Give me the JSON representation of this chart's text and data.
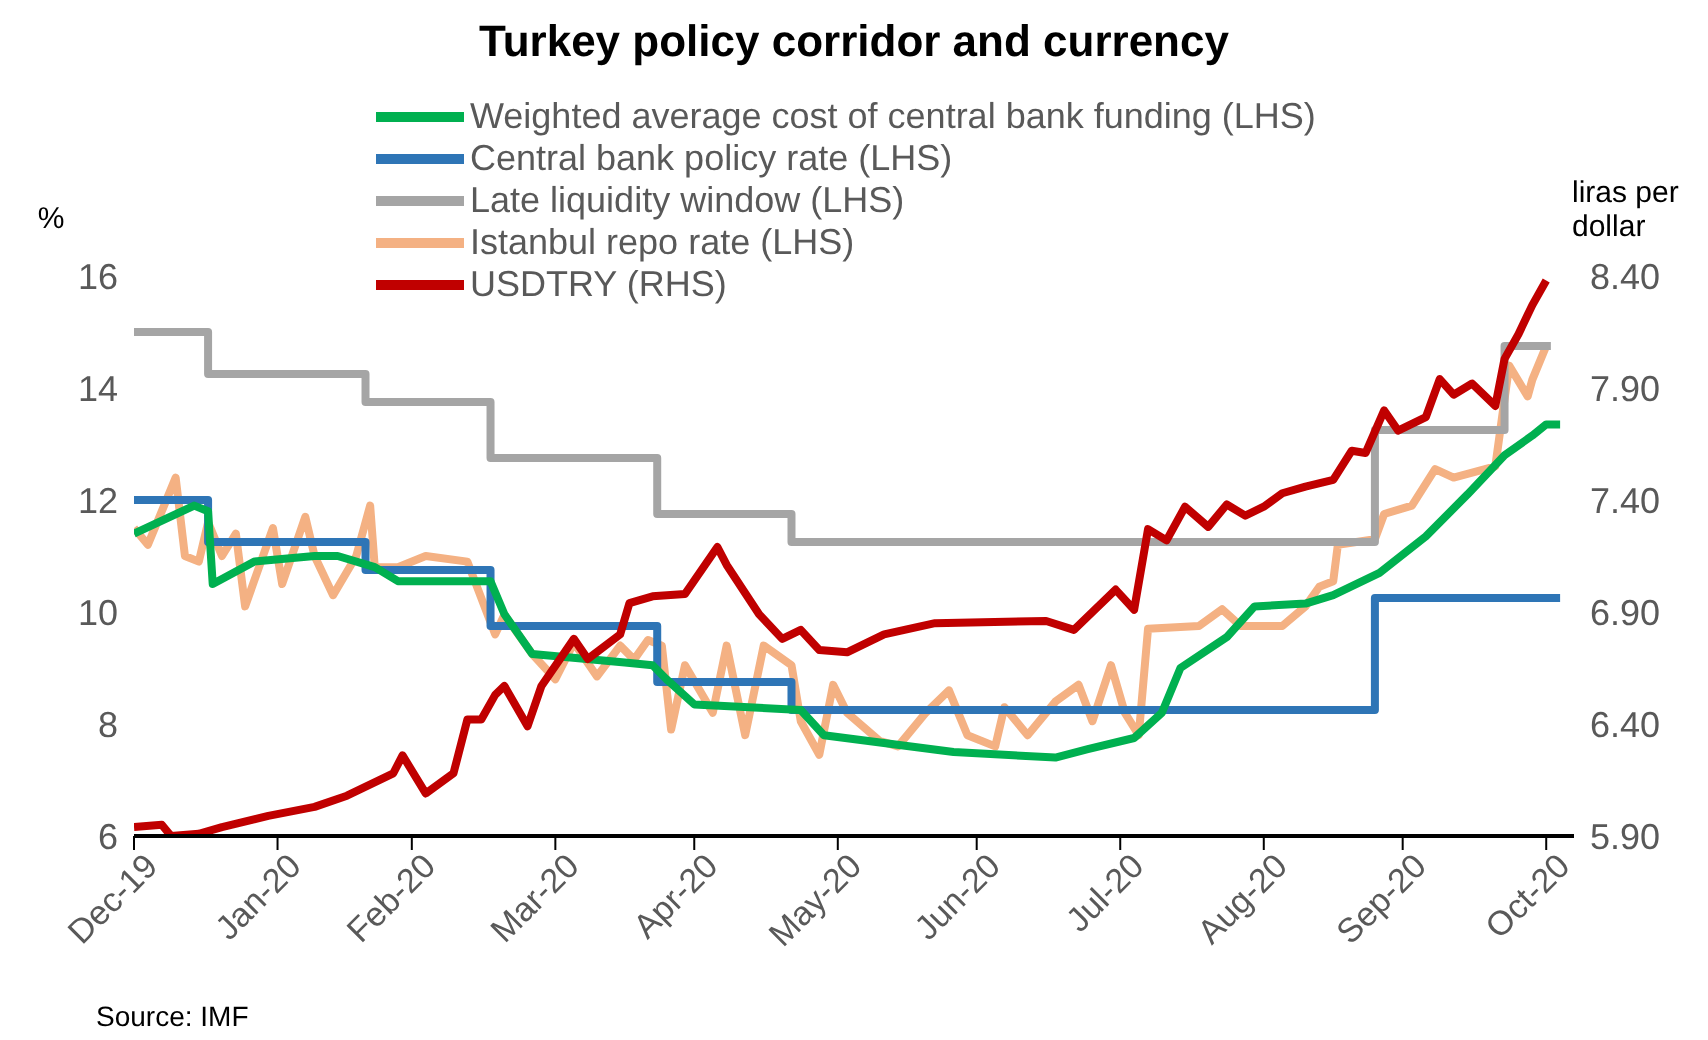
{
  "chart_data": {
    "type": "line",
    "title": "Turkey policy corridor and currency",
    "ylabel": "%",
    "y2label": "liras per dollar",
    "annotations": [
      "Source: IMF"
    ],
    "xlim": [
      "2019-12-31",
      "2020-11-06"
    ],
    "xticks": [
      {
        "value": "2019-12-31",
        "label": "Dec-19"
      },
      {
        "value": "2020-01-31",
        "label": "Jan-20"
      },
      {
        "value": "2020-02-29",
        "label": "Feb-20"
      },
      {
        "value": "2020-03-31",
        "label": "Mar-20"
      },
      {
        "value": "2020-04-30",
        "label": "Apr-20"
      },
      {
        "value": "2020-05-31",
        "label": "May-20"
      },
      {
        "value": "2020-06-30",
        "label": "Jun-20"
      },
      {
        "value": "2020-07-31",
        "label": "Jul-20"
      },
      {
        "value": "2020-08-31",
        "label": "Aug-20"
      },
      {
        "value": "2020-09-30",
        "label": "Sep-20"
      },
      {
        "value": "2020-10-31",
        "label": "Oct-20"
      }
    ],
    "ylim": [
      6,
      16
    ],
    "yticks": [
      6,
      8,
      10,
      12,
      14,
      16
    ],
    "y2lim": [
      5.9,
      8.4
    ],
    "y2ticks": [
      {
        "value": 5.9,
        "label": "5.90"
      },
      {
        "value": 6.4,
        "label": "6.40"
      },
      {
        "value": 6.9,
        "label": "6.90"
      },
      {
        "value": 7.4,
        "label": "7.40"
      },
      {
        "value": 7.9,
        "label": "7.90"
      },
      {
        "value": 8.4,
        "label": "8.40"
      }
    ],
    "grid": false,
    "legend": "top",
    "marker": "none",
    "series": [
      {
        "name": "Weighted average cost of central bank funding (LHS)",
        "color": "#00b050",
        "x": [
          "2019-12-31",
          "2020-01-13",
          "2020-01-16",
          "2020-01-17",
          "2020-01-26",
          "2020-02-08",
          "2020-02-13",
          "2020-02-21",
          "2020-02-26",
          "2020-03-17",
          "2020-03-20",
          "2020-03-26",
          "2020-04-15",
          "2020-04-21",
          "2020-04-24",
          "2020-04-30",
          "2020-05-23",
          "2020-05-28",
          "2020-06-25",
          "2020-07-17",
          "2020-07-24",
          "2020-08-03",
          "2020-08-09",
          "2020-08-13",
          "2020-08-23",
          "2020-08-29",
          "2020-09-09",
          "2020-09-15",
          "2020-09-25",
          "2020-10-05",
          "2020-10-14",
          "2020-10-22",
          "2020-10-28",
          "2020-10-31",
          "2020-11-03"
        ],
        "values": [
          11.4,
          11.9,
          11.8,
          10.5,
          10.9,
          11.0,
          11.0,
          10.8,
          10.55,
          10.55,
          9.96,
          9.25,
          9.1,
          9.05,
          8.8,
          8.35,
          8.25,
          7.8,
          7.5,
          7.4,
          7.55,
          7.75,
          8.2,
          9.0,
          9.55,
          10.1,
          10.15,
          10.3,
          10.7,
          11.35,
          12.1,
          12.8,
          13.15,
          13.35,
          13.35
        ]
      },
      {
        "name": "Central bank policy rate (LHS)",
        "color": "#2e75b6",
        "type": "step",
        "x": [
          "2019-12-31",
          "2020-01-16",
          "2020-02-19",
          "2020-03-17",
          "2020-04-22",
          "2020-05-21",
          "2020-09-24",
          "2020-11-03"
        ],
        "values": [
          12,
          11.25,
          10.75,
          9.75,
          8.75,
          8.25,
          10.25,
          10.25
        ]
      },
      {
        "name": "Late liquidity window (LHS)",
        "color": "#a5a5a5",
        "type": "step",
        "x": [
          "2019-12-31",
          "2020-01-16",
          "2020-02-19",
          "2020-03-17",
          "2020-04-22",
          "2020-05-21",
          "2020-09-24",
          "2020-10-22",
          "2020-11-01"
        ],
        "values": [
          15,
          14.25,
          13.75,
          12.75,
          11.75,
          11.25,
          13.25,
          14.75,
          14.75
        ]
      },
      {
        "name": "Istanbul repo rate (LHS)",
        "color": "#f4b183",
        "x": [
          "2019-12-31",
          "2020-01-03",
          "2020-01-09",
          "2020-01-11",
          "2020-01-14",
          "2020-01-16",
          "2020-01-19",
          "2020-01-22",
          "2020-01-24",
          "2020-01-30",
          "2020-02-01",
          "2020-02-06",
          "2020-02-08",
          "2020-02-12",
          "2020-02-17",
          "2020-02-20",
          "2020-02-21",
          "2020-02-26",
          "2020-03-03",
          "2020-03-12",
          "2020-03-18",
          "2020-03-20",
          "2020-03-26",
          "2020-03-31",
          "2020-04-04",
          "2020-04-09",
          "2020-04-14",
          "2020-04-17",
          "2020-04-20",
          "2020-04-23",
          "2020-04-25",
          "2020-04-28",
          "2020-05-04",
          "2020-05-07",
          "2020-05-11",
          "2020-05-15",
          "2020-05-21",
          "2020-05-23",
          "2020-05-27",
          "2020-05-30",
          "2020-06-02",
          "2020-06-09",
          "2020-06-13",
          "2020-06-19",
          "2020-06-24",
          "2020-06-28",
          "2020-07-04",
          "2020-07-06",
          "2020-07-11",
          "2020-07-17",
          "2020-07-22",
          "2020-07-25",
          "2020-07-29",
          "2020-08-01",
          "2020-08-04",
          "2020-08-06",
          "2020-08-17",
          "2020-08-22",
          "2020-08-26",
          "2020-09-04",
          "2020-09-09",
          "2020-09-12",
          "2020-09-15",
          "2020-09-16",
          "2020-09-24",
          "2020-09-26",
          "2020-10-02",
          "2020-10-07",
          "2020-10-11",
          "2020-10-20",
          "2020-10-23",
          "2020-10-27",
          "2020-10-28",
          "2020-10-31"
        ],
        "values": [
          11.5,
          11.2,
          12.4,
          11.0,
          10.9,
          11.6,
          11.0,
          11.4,
          10.1,
          11.5,
          10.5,
          11.7,
          11.0,
          10.3,
          11.0,
          11.9,
          10.8,
          10.8,
          11.0,
          10.9,
          9.6,
          9.95,
          9.25,
          8.8,
          9.45,
          8.85,
          9.4,
          9.15,
          9.5,
          9.4,
          7.9,
          9.05,
          8.2,
          9.4,
          7.8,
          9.4,
          9.05,
          8.05,
          7.45,
          8.7,
          8.2,
          7.7,
          7.6,
          8.2,
          8.6,
          7.8,
          7.6,
          8.3,
          7.8,
          8.4,
          8.7,
          8.05,
          9.05,
          8.2,
          7.8,
          9.7,
          9.75,
          10.05,
          9.75,
          9.75,
          10.1,
          10.45,
          10.55,
          11.2,
          11.3,
          11.75,
          11.9,
          12.55,
          12.4,
          12.6,
          14.4,
          13.85,
          14.15,
          14.75
        ]
      },
      {
        "name": "USDTRY (RHS)",
        "color": "#c00000",
        "axis": "y2",
        "x": [
          "2019-12-31",
          "2020-01-06",
          "2020-01-08",
          "2020-01-14",
          "2020-01-19",
          "2020-01-29",
          "2020-02-08",
          "2020-02-15",
          "2020-02-25",
          "2020-02-27",
          "2020-03-03",
          "2020-03-09",
          "2020-03-12",
          "2020-03-15",
          "2020-03-18",
          "2020-03-20",
          "2020-03-25",
          "2020-03-28",
          "2020-04-04",
          "2020-04-07",
          "2020-04-14",
          "2020-04-16",
          "2020-04-21",
          "2020-04-28",
          "2020-05-05",
          "2020-05-07",
          "2020-05-14",
          "2020-05-19",
          "2020-05-23",
          "2020-05-27",
          "2020-06-02",
          "2020-06-10",
          "2020-06-21",
          "2020-07-15",
          "2020-07-21",
          "2020-07-30",
          "2020-08-03",
          "2020-08-06",
          "2020-08-10",
          "2020-08-14",
          "2020-08-19",
          "2020-08-23",
          "2020-08-27",
          "2020-08-31",
          "2020-09-04",
          "2020-09-09",
          "2020-09-15",
          "2020-09-19",
          "2020-09-22",
          "2020-09-26",
          "2020-09-29",
          "2020-10-05",
          "2020-10-08",
          "2020-10-11",
          "2020-10-15",
          "2020-10-20",
          "2020-10-22",
          "2020-10-25",
          "2020-10-28",
          "2020-10-31"
        ],
        "values": [
          5.94,
          5.95,
          5.9,
          5.91,
          5.94,
          5.99,
          6.03,
          6.08,
          6.18,
          6.26,
          6.09,
          6.18,
          6.42,
          6.42,
          6.53,
          6.57,
          6.39,
          6.57,
          6.78,
          6.69,
          6.8,
          6.94,
          6.97,
          6.98,
          7.19,
          7.11,
          6.89,
          6.78,
          6.82,
          6.73,
          6.72,
          6.8,
          6.85,
          6.86,
          6.82,
          7.0,
          6.91,
          7.27,
          7.22,
          7.37,
          7.28,
          7.38,
          7.33,
          7.37,
          7.43,
          7.46,
          7.49,
          7.62,
          7.61,
          7.8,
          7.71,
          7.77,
          7.94,
          7.87,
          7.92,
          7.82,
          8.03,
          8.14,
          8.27,
          8.38
        ]
      }
    ]
  }
}
